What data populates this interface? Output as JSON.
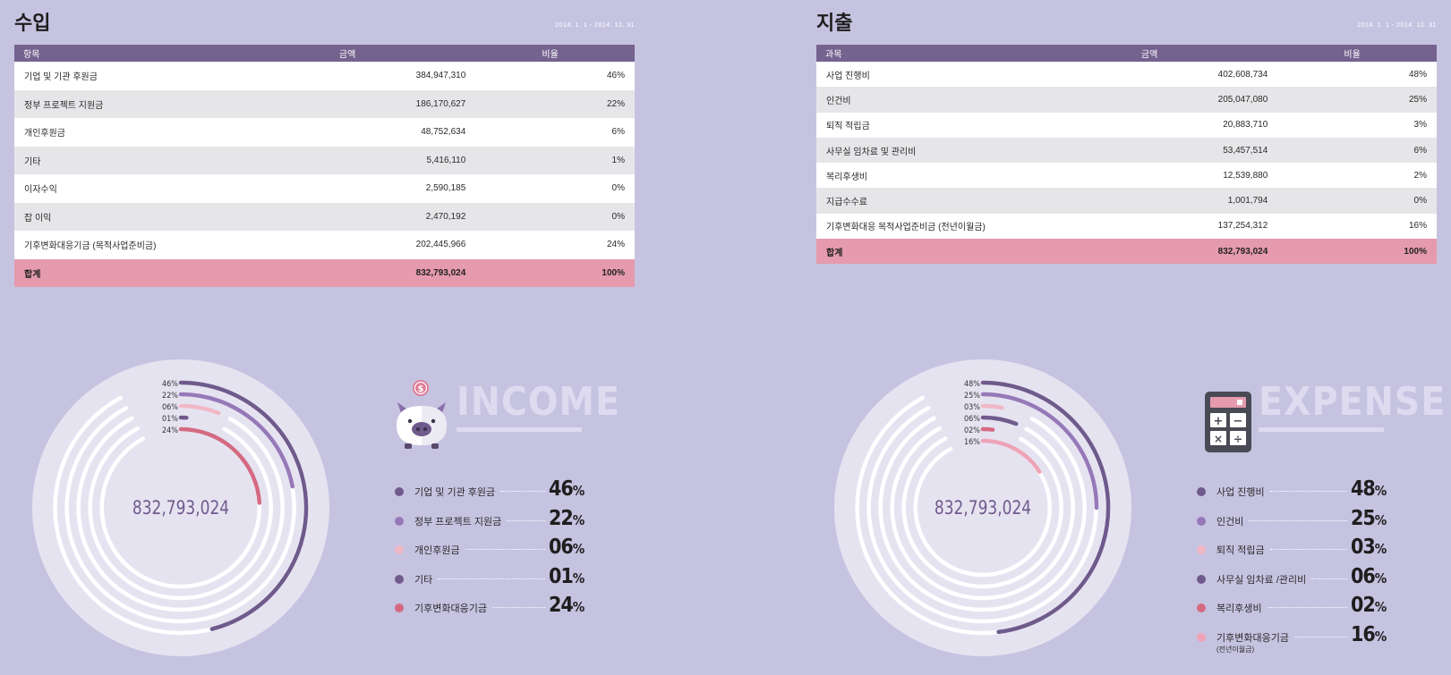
{
  "income": {
    "title": "수입",
    "period": "2014. 1. 1 - 2014. 12. 31",
    "headers": [
      "항목",
      "금액",
      "비율"
    ],
    "rows": [
      {
        "item": "기업 및 기관 후원금",
        "amount": "384,947,310",
        "ratio": "46%"
      },
      {
        "item": "정부 프로젝트 지원금",
        "amount": "186,170,627",
        "ratio": "22%"
      },
      {
        "item": "개인후원금",
        "amount": "48,752,634",
        "ratio": "6%"
      },
      {
        "item": "기타",
        "amount": "5,416,110",
        "ratio": "1%"
      },
      {
        "item": "이자수익",
        "amount": "2,590,185",
        "ratio": "0%"
      },
      {
        "item": "잡 이익",
        "amount": "2,470,192",
        "ratio": "0%"
      },
      {
        "item": "기후변화대응기금 (목적사업준비금)",
        "amount": "202,445,966",
        "ratio": "24%"
      }
    ],
    "total": {
      "item": "합계",
      "amount": "832,793,024",
      "ratio": "100%"
    },
    "emblem": "INCOME",
    "emblem_icon": "piggy-bank-icon",
    "donut_total": "832,793,024",
    "legend": [
      {
        "label": "기업 및 기관 후원금",
        "pct": "46",
        "color": "#6f5a8c"
      },
      {
        "label": "정부 프로젝트 지원금",
        "pct": "22",
        "color": "#9679b8"
      },
      {
        "label": "개인후원금",
        "pct": "06",
        "color": "#f0b8c6"
      },
      {
        "label": "기타",
        "pct": "01",
        "color": "#6f5a8c"
      },
      {
        "label": "기후변화대응기금",
        "pct": "24",
        "color": "#d46a82"
      }
    ]
  },
  "expense": {
    "title": "지출",
    "period": "2014. 1. 1 - 2014. 12. 31",
    "headers": [
      "과목",
      "금액",
      "비율"
    ],
    "rows": [
      {
        "item": "사업 진행비",
        "amount": "402,608,734",
        "ratio": "48%"
      },
      {
        "item": "인건비",
        "amount": "205,047,080",
        "ratio": "25%"
      },
      {
        "item": "퇴직 적립금",
        "amount": "20,883,710",
        "ratio": "3%"
      },
      {
        "item": "사무실 임차료 및 관리비",
        "amount": "53,457,514",
        "ratio": "6%"
      },
      {
        "item": "복리후생비",
        "amount": "12,539,880",
        "ratio": "2%"
      },
      {
        "item": "지급수수료",
        "amount": "1,001,794",
        "ratio": "0%"
      },
      {
        "item": "기후변화대응 목적사업준비금 (전년이월금)",
        "amount": "137,254,312",
        "ratio": "16%"
      }
    ],
    "total": {
      "item": "합계",
      "amount": "832,793,024",
      "ratio": "100%"
    },
    "emblem": "EXPENSE",
    "emblem_icon": "calculator-icon",
    "donut_total": "832,793,024",
    "legend": [
      {
        "label": "사업 진행비",
        "pct": "48",
        "color": "#6f5a8c"
      },
      {
        "label": "인건비",
        "pct": "25",
        "color": "#9679b8"
      },
      {
        "label": "퇴직 적립금",
        "pct": "03",
        "color": "#f0b8c6"
      },
      {
        "label": "사무실 임차료 /관리비",
        "pct": "06",
        "color": "#6f5a8c"
      },
      {
        "label": "복리후생비",
        "pct": "02",
        "color": "#d46a82"
      },
      {
        "label": "기후변화대응기금",
        "sub": "(전년이월금)",
        "pct": "16",
        "color": "#eea3b6"
      }
    ]
  },
  "chart_data": [
    {
      "type": "donut",
      "title": "",
      "center_label": "832,793,024",
      "categories": [
        "기업 및 기관 후원금",
        "정부 프로젝트 지원금",
        "개인후원금",
        "기타",
        "기후변화대응기금"
      ],
      "values": [
        46,
        22,
        6,
        1,
        24
      ],
      "value_labels": [
        "46%",
        "22%",
        "06%",
        "01%",
        "24%"
      ],
      "colors": [
        "#6f5a8c",
        "#9679b8",
        "#f0b8c6",
        "#6f5a8c",
        "#d46a82"
      ]
    },
    {
      "type": "donut",
      "title": "",
      "center_label": "832,793,024",
      "categories": [
        "사업 진행비",
        "인건비",
        "퇴직 적립금",
        "사무실 임차료 /관리비",
        "복리후생비",
        "기후변화대응기금"
      ],
      "values": [
        48,
        25,
        3,
        6,
        2,
        16
      ],
      "value_labels": [
        "48%",
        "25%",
        "03%",
        "06%",
        "02%",
        "16%"
      ],
      "colors": [
        "#6f5a8c",
        "#9679b8",
        "#f0b8c6",
        "#6f5a8c",
        "#d46a82",
        "#eea3b6"
      ]
    }
  ]
}
